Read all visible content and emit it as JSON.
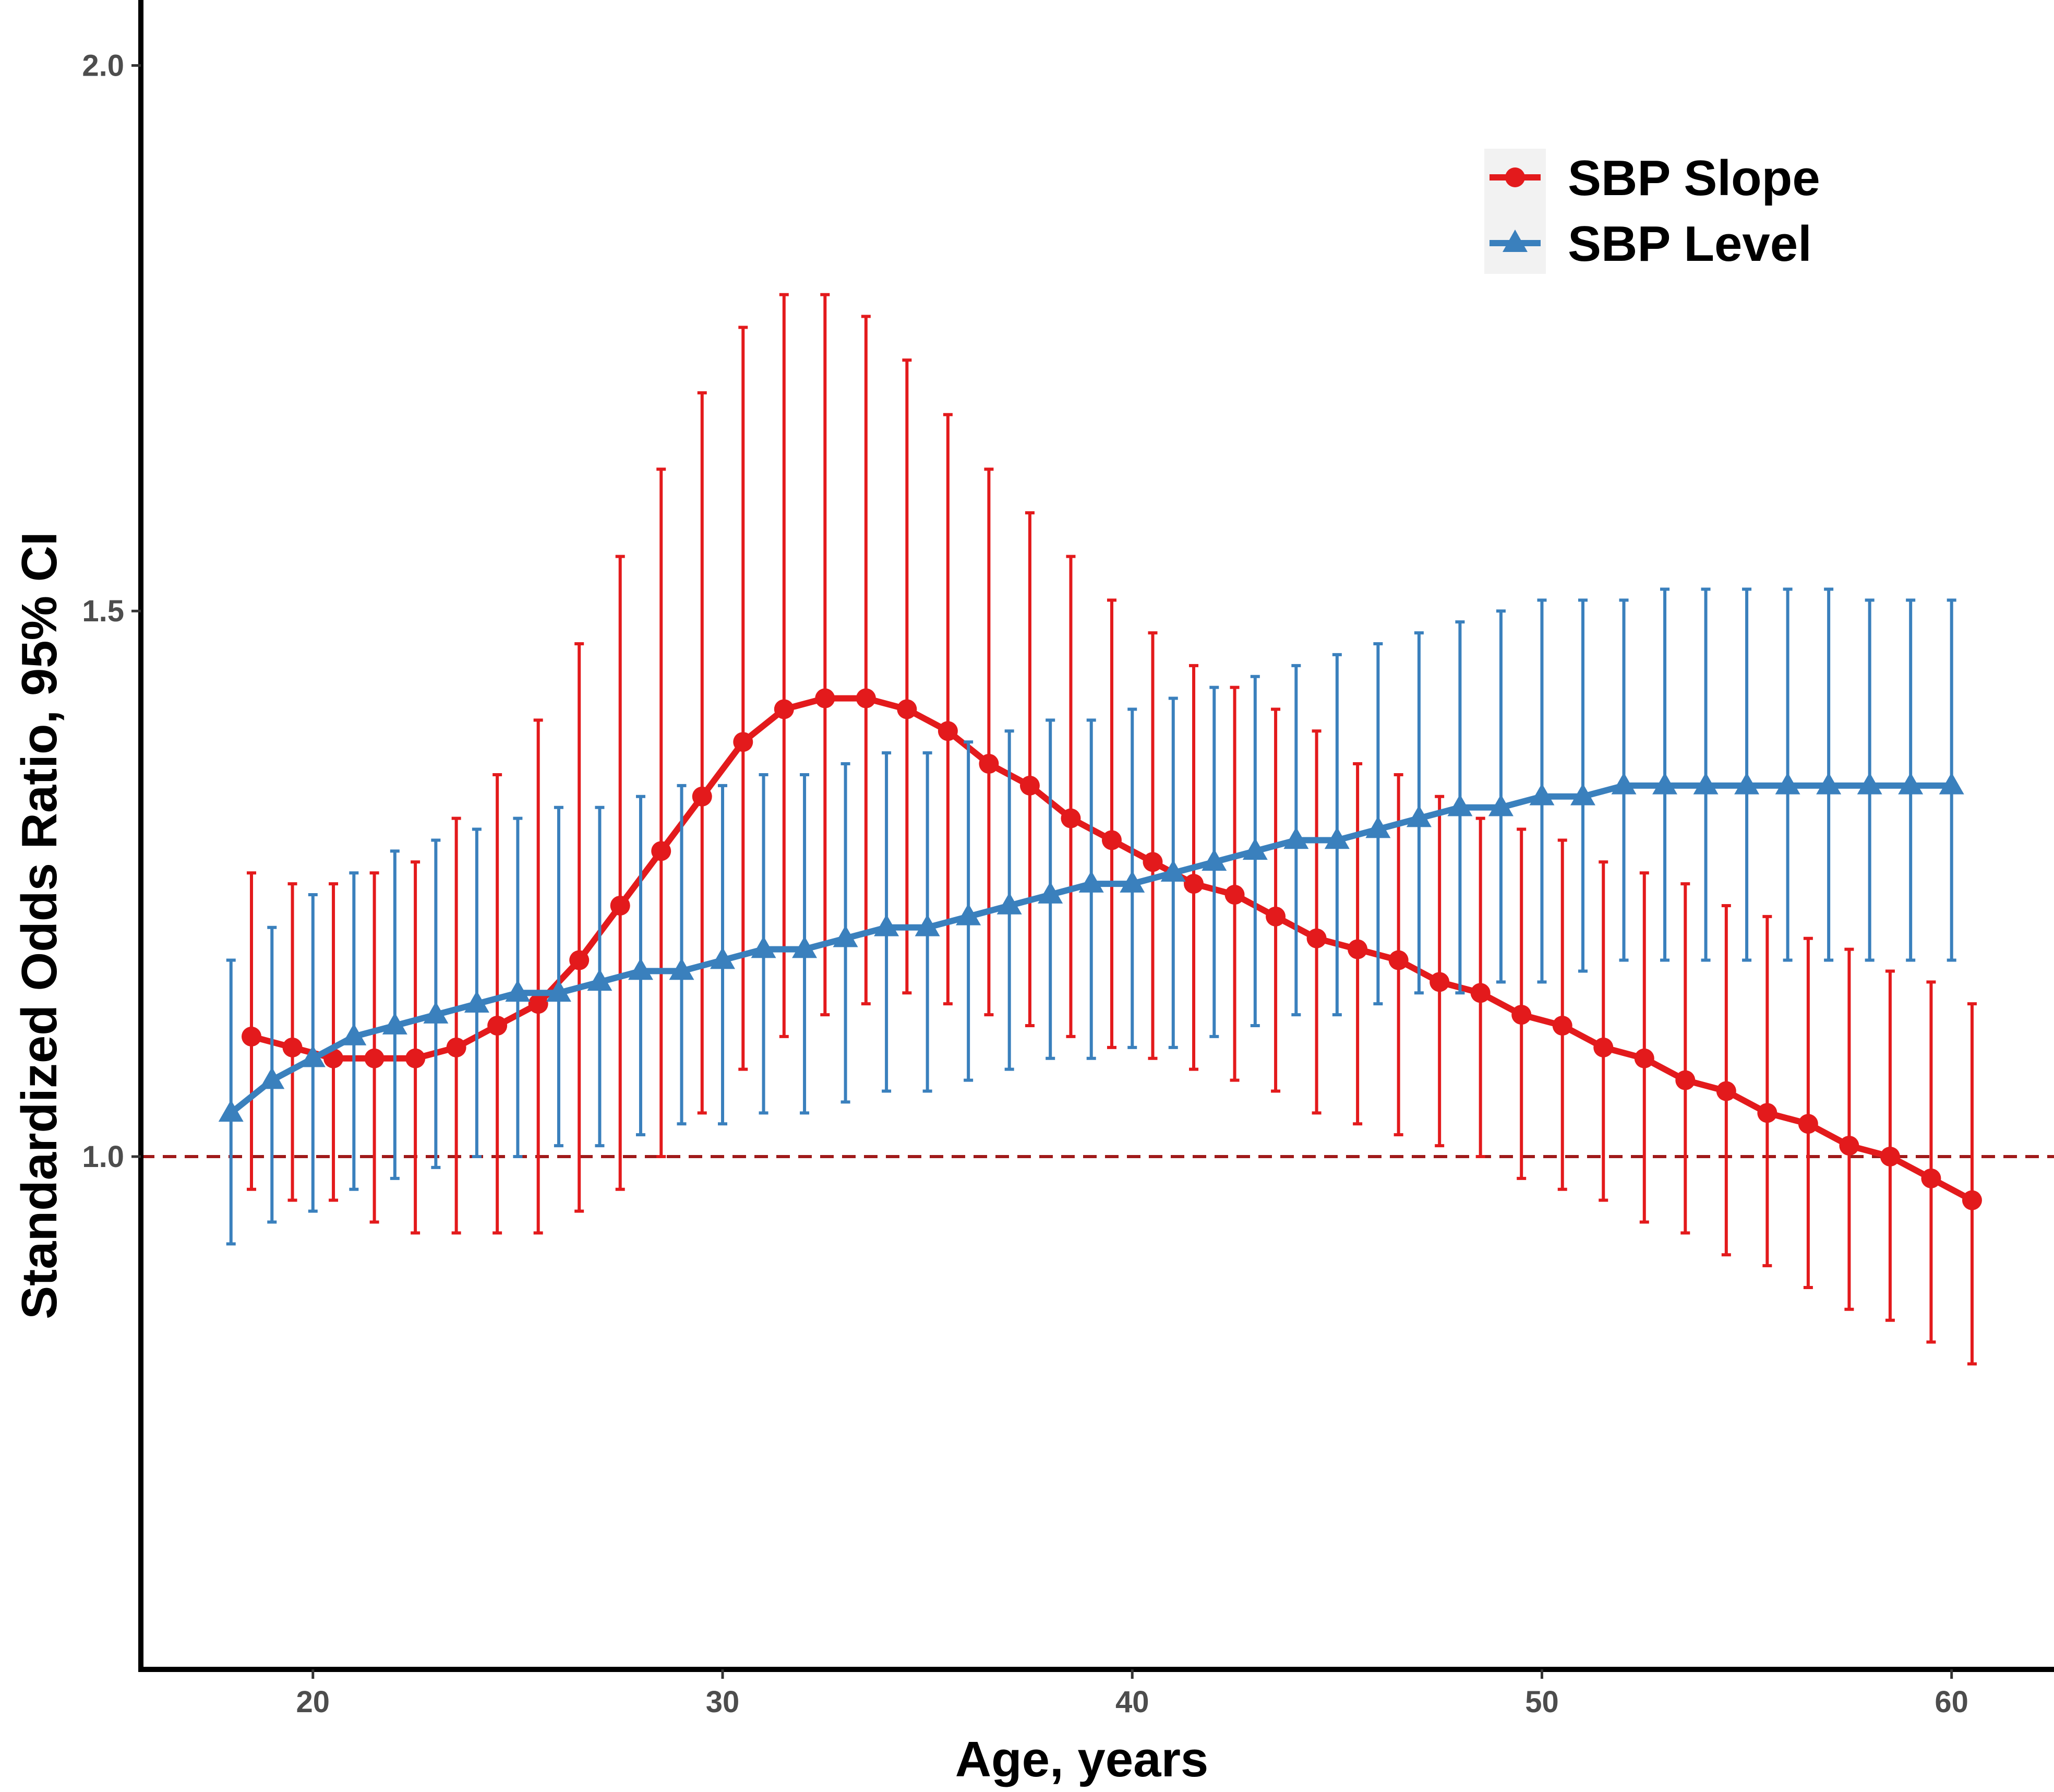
{
  "chart_data": {
    "type": "line",
    "title": "",
    "xlabel": "Age, years",
    "ylabel": "Standardized Odds Ratio, 95% CI",
    "xlim": [
      15.8,
      62.5
    ],
    "ylim": [
      0.53,
      2.06
    ],
    "x_ticks": [
      {
        "value": 20,
        "label": "20"
      },
      {
        "value": 30,
        "label": "30"
      },
      {
        "value": 40,
        "label": "40"
      },
      {
        "value": 50,
        "label": "50"
      },
      {
        "value": 60,
        "label": "60"
      }
    ],
    "y_ticks": [
      {
        "value": 1.0,
        "label": "1.0"
      },
      {
        "value": 1.5,
        "label": "1.5"
      },
      {
        "value": 2.0,
        "label": "2.0"
      }
    ],
    "reference_line": {
      "y": 1.0,
      "color": "#a01a1a",
      "style": "dashed"
    },
    "legend": {
      "position": "top-right"
    },
    "grid": false,
    "series": [
      {
        "name": "SBP Slope",
        "color": "#e31a1c",
        "marker": "circle",
        "x": [
          18.5,
          19.5,
          20.5,
          21.5,
          22.5,
          23.5,
          24.5,
          25.5,
          26.5,
          27.5,
          28.5,
          29.5,
          30.5,
          31.5,
          32.5,
          33.5,
          34.5,
          35.5,
          36.5,
          37.5,
          38.5,
          39.5,
          40.5,
          41.5,
          42.5,
          43.5,
          44.5,
          45.5,
          46.5,
          47.5,
          48.5,
          49.5,
          50.5,
          51.5,
          52.5,
          53.5,
          54.5,
          55.5,
          56.5,
          57.5,
          58.5,
          59.5,
          60.5
        ],
        "y": [
          1.11,
          1.1,
          1.09,
          1.09,
          1.09,
          1.1,
          1.12,
          1.14,
          1.18,
          1.23,
          1.28,
          1.33,
          1.38,
          1.41,
          1.42,
          1.42,
          1.41,
          1.39,
          1.36,
          1.34,
          1.31,
          1.29,
          1.27,
          1.25,
          1.24,
          1.22,
          1.2,
          1.19,
          1.18,
          1.16,
          1.15,
          1.13,
          1.12,
          1.1,
          1.09,
          1.07,
          1.06,
          1.04,
          1.03,
          1.01,
          1.0,
          0.98,
          0.96
        ],
        "ci_lower": [
          0.97,
          0.96,
          0.96,
          0.94,
          0.93,
          0.93,
          0.93,
          0.93,
          0.95,
          0.97,
          1.0,
          1.04,
          1.08,
          1.11,
          1.13,
          1.14,
          1.15,
          1.14,
          1.13,
          1.12,
          1.11,
          1.1,
          1.09,
          1.08,
          1.07,
          1.06,
          1.04,
          1.03,
          1.02,
          1.01,
          1.0,
          0.98,
          0.97,
          0.96,
          0.94,
          0.93,
          0.91,
          0.9,
          0.88,
          0.86,
          0.85,
          0.83,
          0.81
        ],
        "ci_upper": [
          1.26,
          1.25,
          1.25,
          1.26,
          1.27,
          1.31,
          1.35,
          1.4,
          1.47,
          1.55,
          1.63,
          1.7,
          1.76,
          1.79,
          1.79,
          1.77,
          1.73,
          1.68,
          1.63,
          1.59,
          1.55,
          1.51,
          1.48,
          1.45,
          1.43,
          1.41,
          1.39,
          1.36,
          1.35,
          1.33,
          1.31,
          1.3,
          1.29,
          1.27,
          1.26,
          1.25,
          1.23,
          1.22,
          1.2,
          1.19,
          1.17,
          1.16,
          1.14
        ]
      },
      {
        "name": "SBP Level",
        "color": "#3a80bd",
        "marker": "triangle",
        "x": [
          18,
          19,
          20,
          21,
          22,
          23,
          24,
          25,
          26,
          27,
          28,
          29,
          30,
          31,
          32,
          33,
          34,
          35,
          36,
          37,
          38,
          39,
          40,
          41,
          42,
          43,
          44,
          45,
          46,
          47,
          48,
          49,
          50,
          51,
          52,
          53,
          54,
          55,
          56,
          57,
          58,
          59,
          60
        ],
        "y": [
          1.04,
          1.07,
          1.09,
          1.11,
          1.12,
          1.13,
          1.14,
          1.15,
          1.15,
          1.16,
          1.17,
          1.17,
          1.18,
          1.19,
          1.19,
          1.2,
          1.21,
          1.21,
          1.22,
          1.23,
          1.24,
          1.25,
          1.25,
          1.26,
          1.27,
          1.28,
          1.29,
          1.29,
          1.3,
          1.31,
          1.32,
          1.32,
          1.33,
          1.33,
          1.34,
          1.34,
          1.34,
          1.34,
          1.34,
          1.34,
          1.34,
          1.34,
          1.34
        ],
        "ci_lower": [
          0.92,
          0.94,
          0.95,
          0.97,
          0.98,
          0.99,
          1.0,
          1.0,
          1.01,
          1.01,
          1.02,
          1.03,
          1.03,
          1.04,
          1.04,
          1.05,
          1.06,
          1.06,
          1.07,
          1.08,
          1.09,
          1.09,
          1.1,
          1.1,
          1.11,
          1.12,
          1.13,
          1.13,
          1.14,
          1.15,
          1.15,
          1.16,
          1.16,
          1.17,
          1.18,
          1.18,
          1.18,
          1.18,
          1.18,
          1.18,
          1.18,
          1.18,
          1.18
        ],
        "ci_upper": [
          1.18,
          1.21,
          1.24,
          1.26,
          1.28,
          1.29,
          1.3,
          1.31,
          1.32,
          1.32,
          1.33,
          1.34,
          1.34,
          1.35,
          1.35,
          1.36,
          1.37,
          1.37,
          1.38,
          1.39,
          1.4,
          1.4,
          1.41,
          1.42,
          1.43,
          1.44,
          1.45,
          1.46,
          1.47,
          1.48,
          1.49,
          1.5,
          1.51,
          1.51,
          1.51,
          1.52,
          1.52,
          1.52,
          1.52,
          1.52,
          1.51,
          1.51,
          1.51
        ]
      }
    ]
  }
}
